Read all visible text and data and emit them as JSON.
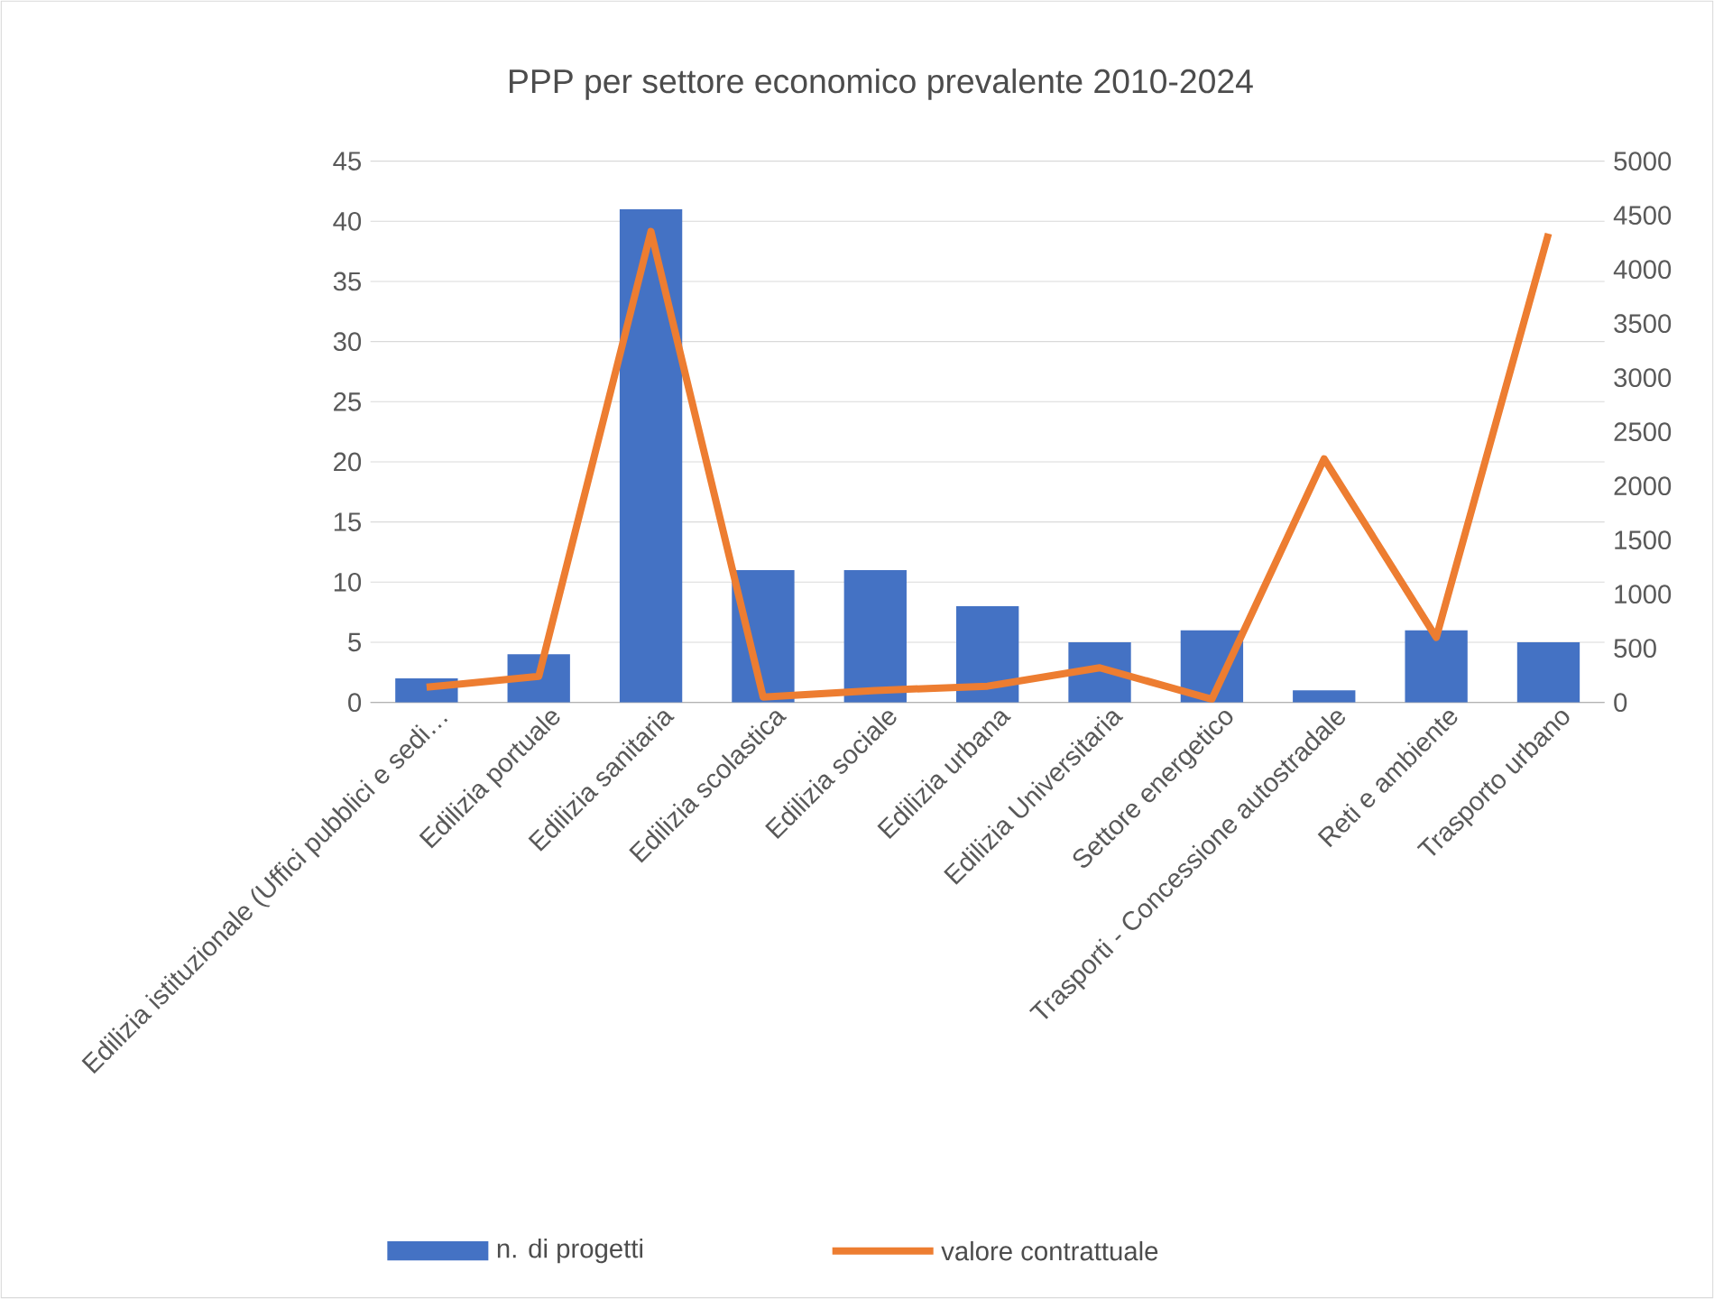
{
  "chart_data": {
    "type": "bar",
    "title": "PPP per settore economico prevalente 2010-2024",
    "categories": [
      "Edilizia istituzionale (Uffici pubblici e sedi…",
      "Edilizia portuale",
      "Edilizia sanitaria",
      "Edilizia scolastica",
      "Edilizia sociale",
      "Edilizia urbana",
      "Edilizia Universitaria",
      "Settore energetico",
      "Trasporti - Concessione autostradale",
      "Reti e ambiente",
      "Trasporto urbano"
    ],
    "series": [
      {
        "name": "n. di progetti",
        "color": "#4472c4",
        "values": [
          2,
          4,
          41,
          11,
          11,
          8,
          5,
          6,
          1,
          6,
          5
        ]
      },
      {
        "name": "valore contrattuale",
        "type": "line",
        "axis": "y2",
        "color": "#ed7d31",
        "values": [
          140,
          240,
          4350,
          50,
          110,
          150,
          320,
          30,
          2250,
          600,
          4330
        ]
      }
    ],
    "ylim": [
      0,
      45
    ],
    "yticks": [
      0,
      5,
      10,
      15,
      20,
      25,
      30,
      35,
      40,
      45
    ],
    "y2lim": [
      0,
      5000
    ],
    "y2ticks": [
      0,
      500,
      1000,
      1500,
      2000,
      2500,
      3000,
      3500,
      4000,
      4500,
      5000
    ],
    "grid": "y",
    "legend": "bottom"
  }
}
